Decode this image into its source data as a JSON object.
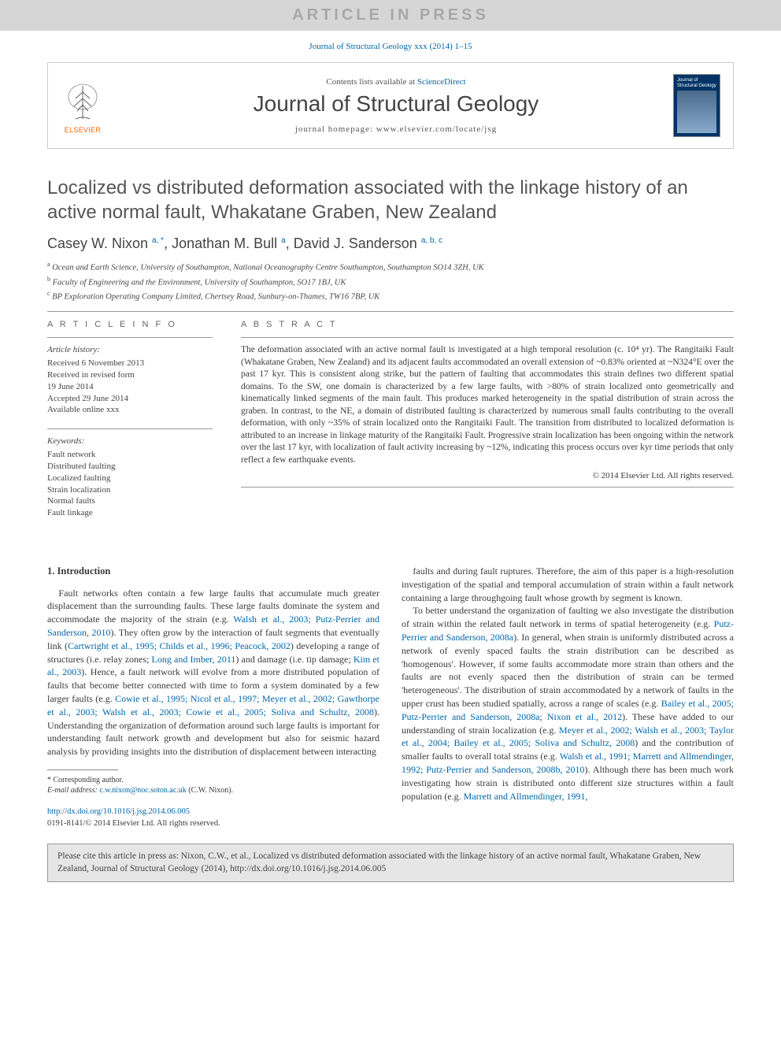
{
  "banner": {
    "text": "ARTICLE IN PRESS"
  },
  "journal_ref_top": {
    "journal": "Journal of Structural Geology",
    "volume_pages": "xxx (2014) 1–15"
  },
  "masthead": {
    "publisher_label": "ELSEVIER",
    "contents_prefix": "Contents lists available at",
    "contents_link": "ScienceDirect",
    "journal_title": "Journal of Structural Geology",
    "homepage_prefix": "journal homepage:",
    "homepage_url": "www.elsevier.com/locate/jsg",
    "cover_title": "Journal of Structural Geology"
  },
  "article": {
    "title": "Localized vs distributed deformation associated with the linkage history of an active normal fault, Whakatane Graben, New Zealand",
    "authors_html": "Casey W. Nixon <sup>a, *</sup>, Jonathan M. Bull <sup>a</sup>, David J. Sanderson <sup>a, b, c</sup>",
    "affiliations": [
      {
        "sup": "a",
        "text": "Ocean and Earth Science, University of Southampton, National Oceanography Centre Southampton, Southampton SO14 3ZH, UK"
      },
      {
        "sup": "b",
        "text": "Faculty of Engineering and the Environment, University of Southampton, SO17 1BJ, UK"
      },
      {
        "sup": "c",
        "text": "BP Exploration Operating Company Limited, Chertsey Road, Sunbury-on-Thames, TW16 7BP, UK"
      }
    ]
  },
  "info": {
    "heading": "A R T I C L E   I N F O",
    "history_label": "Article history:",
    "history_lines": [
      "Received 6 November 2013",
      "Received in revised form",
      "19 June 2014",
      "Accepted 29 June 2014",
      "Available online xxx"
    ],
    "keywords_label": "Keywords:",
    "keywords": [
      "Fault network",
      "Distributed faulting",
      "Localized faulting",
      "Strain localization",
      "Normal faults",
      "Fault linkage"
    ]
  },
  "abstract": {
    "heading": "A B S T R A C T",
    "text": "The deformation associated with an active normal fault is investigated at a high temporal resolution (c. 10⁴ yr). The Rangitaiki Fault (Whakatane Graben, New Zealand) and its adjacent faults accommodated an overall extension of ~0.83% oriented at ~N324°E over the past 17 kyr. This is consistent along strike, but the pattern of faulting that accommodates this strain defines two different spatial domains. To the SW, one domain is characterized by a few large faults, with >80% of strain localized onto geometrically and kinematically linked segments of the main fault. This produces marked heterogeneity in the spatial distribution of strain across the graben. In contrast, to the NE, a domain of distributed faulting is characterized by numerous small faults contributing to the overall deformation, with only ~35% of strain localized onto the Rangitaiki Fault. The transition from distributed to localized deformation is attributed to an increase in linkage maturity of the Rangitaiki Fault. Progressive strain localization has been ongoing within the network over the last 17 kyr, with localization of fault activity increasing by ~12%, indicating this process occurs over kyr time periods that only reflect a few earthquake events.",
    "copyright": "© 2014 Elsevier Ltd. All rights reserved."
  },
  "body": {
    "section_number": "1.",
    "section_title": "Introduction",
    "col1_paragraphs": [
      "Fault networks often contain a few large faults that accumulate much greater displacement than the surrounding faults. These large faults dominate the system and accommodate the majority of the strain (e.g. <span class=\"cite\">Walsh et al., 2003; Putz-Perrier and Sanderson, 2010</span>). They often grow by the interaction of fault segments that eventually link (<span class=\"cite\">Cartwright et al., 1995; Childs et al., 1996; Peacock, 2002</span>) developing a range of structures (i.e. relay zones; <span class=\"cite\">Long and Imber, 2011</span>) and damage (i.e. tip damage; <span class=\"cite\">Kim et al., 2003</span>). Hence, a fault network will evolve from a more distributed population of faults that become better connected with time to form a system dominated by a few larger faults (e.g. <span class=\"cite\">Cowie et al., 1995; Nicol et al., 1997; Meyer et al., 2002; Gawthorpe et al., 2003; Walsh et al., 2003; Cowie et al., 2005; Soliva and Schultz, 2008</span>). Understanding the organization of deformation around such large faults is important for understanding fault network growth and development but also for seismic hazard analysis by providing insights into the distribution of displacement between interacting"
    ],
    "col2_paragraphs": [
      "faults and during fault ruptures. Therefore, the aim of this paper is a high-resolution investigation of the spatial and temporal accumulation of strain within a fault network containing a large throughgoing fault whose growth by segment is known.",
      "To better understand the organization of faulting we also investigate the distribution of strain within the related fault network in terms of spatial heterogeneity (e.g. <span class=\"cite\">Putz-Perrier and Sanderson, 2008a</span>). In general, when strain is uniformly distributed across a network of evenly spaced faults the strain distribution can be described as 'homogenous'. However, if some faults accommodate more strain than others and the faults are not evenly spaced then the distribution of strain can be termed 'heterogeneous'. The distribution of strain accommodated by a network of faults in the upper crust has been studied spatially, across a range of scales (e.g. <span class=\"cite\">Bailey et al., 2005; Putz-Perrier and Sanderson, 2008a; Nixon et al., 2012</span>). These have added to our understanding of strain localization (e.g. <span class=\"cite\">Meyer et al., 2002; Walsh et al., 2003; Taylor et al., 2004; Bailey et al., 2005; Soliva and Schultz, 2008</span>) and the contribution of smaller faults to overall total strains (e.g. <span class=\"cite\">Walsh et al., 1991; Marrett and Allmendinger, 1992; Putz-Perrier and Sanderson, 2008b, 2010</span>). Although there has been much work investigating how strain is distributed onto different size structures within a fault population (e.g. <span class=\"cite\">Marrett and Allmendinger, 1991,</span>"
    ]
  },
  "footnote": {
    "star": "*",
    "label": "Corresponding author.",
    "email_label": "E-mail address:",
    "email": "c.w.nixon@noc.soton.ac.uk",
    "email_paren": "(C.W. Nixon)."
  },
  "doi": {
    "url": "http://dx.doi.org/10.1016/j.jsg.2014.06.005",
    "issn_line": "0191-8141/© 2014 Elsevier Ltd. All rights reserved."
  },
  "cite_box": {
    "text": "Please cite this article in press as: Nixon, C.W., et al., Localized vs distributed deformation associated with the linkage history of an active normal fault, Whakatane Graben, New Zealand, Journal of Structural Geology (2014), http://dx.doi.org/10.1016/j.jsg.2014.06.005"
  },
  "colors": {
    "link": "#0066aa",
    "banner_bg": "#d6d6d6",
    "banner_fg": "#a8a8a8",
    "elsevier_orange": "#ff6600",
    "cover_bg": "#003366",
    "citebox_bg": "#e6e6e6"
  }
}
